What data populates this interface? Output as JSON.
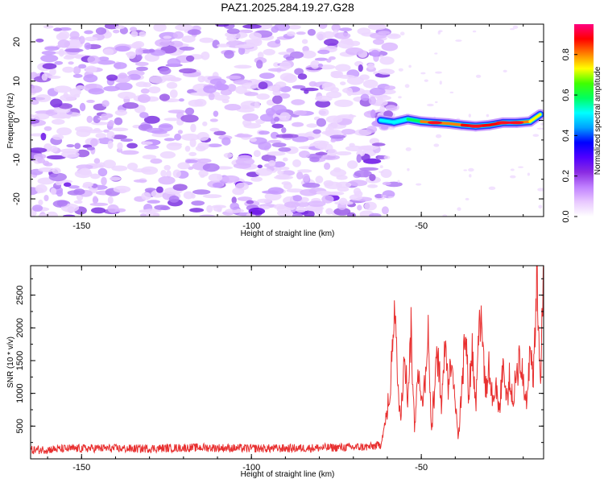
{
  "chart_data": [
    {
      "type": "heatmap",
      "title": "PAZ1.2025.284.19.27.G28",
      "xlabel": "Height of straight line (km)",
      "ylabel": "Frequency (Hz)",
      "xlim": [
        -165,
        -14
      ],
      "ylim": [
        -24.5,
        24.5
      ],
      "x_ticks": [
        -150,
        -100,
        -50
      ],
      "y_ticks": [
        -20,
        -10,
        0,
        10,
        20
      ],
      "colorbar": {
        "label": "Normalized spectral amplitude",
        "range": [
          0,
          0.95
        ],
        "ticks": [
          "0.0",
          "0.2",
          "0.4",
          "0.6",
          "0.8"
        ],
        "tick_values": [
          0,
          0.2,
          0.4,
          0.6,
          0.8
        ],
        "colors": [
          "#ffffff",
          "#e8c8ff",
          "#c080ff",
          "#8a2be2",
          "#5000ff",
          "#0000ff",
          "#00a0ff",
          "#00ffff",
          "#00ff60",
          "#40ff00",
          "#ffff00",
          "#ff8000",
          "#ff0000",
          "#ff0080"
        ]
      },
      "noise_region_x": [
        -165,
        -62
      ],
      "signal_trace": [
        {
          "x": -62,
          "y": 0,
          "amp": 0.45
        },
        {
          "x": -58,
          "y": -0.5,
          "amp": 0.5
        },
        {
          "x": -54,
          "y": 0.3,
          "amp": 0.55
        },
        {
          "x": -50,
          "y": -0.3,
          "amp": 0.65
        },
        {
          "x": -46,
          "y": -0.6,
          "amp": 0.95
        },
        {
          "x": -42,
          "y": -0.8,
          "amp": 0.7
        },
        {
          "x": -38,
          "y": -1.2,
          "amp": 0.85
        },
        {
          "x": -34,
          "y": -1.5,
          "amp": 0.95
        },
        {
          "x": -30,
          "y": -1.2,
          "amp": 0.75
        },
        {
          "x": -26,
          "y": -0.6,
          "amp": 0.95
        },
        {
          "x": -22,
          "y": -0.6,
          "amp": 0.95
        },
        {
          "x": -18,
          "y": -0.3,
          "amp": 0.7
        },
        {
          "x": -15,
          "y": 1.5,
          "amp": 0.8
        }
      ]
    },
    {
      "type": "line",
      "xlabel": "Height of straight line (km)",
      "ylabel": "SNR (10 * v/v)",
      "xlim": [
        -165,
        -14
      ],
      "ylim": [
        0,
        2950
      ],
      "x_ticks": [
        -150,
        -100,
        -50
      ],
      "y_ticks": [
        500,
        1000,
        1500,
        2000,
        2500
      ],
      "series": [
        {
          "name": "SNR",
          "color": "#e83030",
          "x": [
            -165,
            -155,
            -145,
            -135,
            -125,
            -115,
            -105,
            -95,
            -85,
            -75,
            -65,
            -62,
            -60,
            -59,
            -58,
            -57,
            -56,
            -55,
            -54,
            -53,
            -52,
            -51,
            -50,
            -49,
            -48,
            -47,
            -46,
            -45,
            -44,
            -43,
            -42,
            -41,
            -40,
            -39,
            -38,
            -37,
            -36,
            -35,
            -34,
            -33,
            -32,
            -31,
            -30,
            -29,
            -28,
            -27,
            -26,
            -25,
            -24,
            -23,
            -22,
            -21,
            -20,
            -19,
            -18,
            -17,
            -16,
            -15,
            -14
          ],
          "values": [
            120,
            140,
            150,
            140,
            150,
            160,
            150,
            145,
            150,
            160,
            170,
            200,
            700,
            1100,
            2500,
            1200,
            600,
            1800,
            900,
            2000,
            400,
            1500,
            800,
            1200,
            1900,
            400,
            1200,
            1600,
            700,
            2000,
            1100,
            1600,
            900,
            300,
            1300,
            1900,
            1000,
            1700,
            800,
            2300,
            1800,
            1000,
            1400,
            800,
            1200,
            700,
            1500,
            900,
            1200,
            800,
            1300,
            1600,
            1100,
            900,
            1800,
            1200,
            2900,
            1300,
            2600
          ]
        }
      ]
    }
  ]
}
